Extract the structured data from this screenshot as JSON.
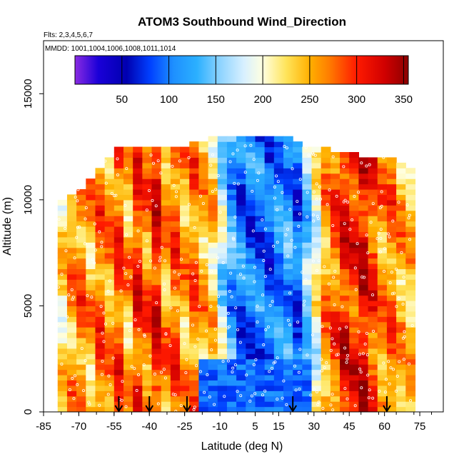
{
  "chart_data": {
    "type": "heatmap",
    "title": "ATOM3 Southbound Wind_Direction",
    "subtitle_flights": "Flts: 2,3,4,5,6,7",
    "subtitle_dates": "MMDD: 1001,1004,1006,1008,1011,1014",
    "xlabel": "Latitude (deg N)",
    "ylabel": "Altitude (m)",
    "xlim": [
      -85,
      85
    ],
    "ylim": [
      0,
      17500
    ],
    "x_tick_values": [
      -85,
      -70,
      -55,
      -40,
      -25,
      -10,
      5,
      15,
      30,
      45,
      60,
      75
    ],
    "x_tick_labels": [
      "-85",
      "-70",
      "-55",
      "-40",
      "-25",
      "-10",
      "5",
      "15",
      "30",
      "45",
      "60",
      "75"
    ],
    "y_tick_values": [
      0,
      5000,
      10000,
      15000
    ],
    "y_tick_labels": [
      "0",
      "5000",
      "10000",
      "15000"
    ],
    "colorbar": {
      "range": [
        0,
        355
      ],
      "tick_values": [
        50,
        100,
        150,
        200,
        250,
        300,
        350
      ],
      "tick_labels": [
        "50",
        "100",
        "150",
        "200",
        "250",
        "300",
        "350"
      ],
      "stops": [
        {
          "value": 0,
          "color": "#8a2be2"
        },
        {
          "value": 25,
          "color": "#1a00d8"
        },
        {
          "value": 55,
          "color": "#0000b0"
        },
        {
          "value": 80,
          "color": "#0040ff"
        },
        {
          "value": 105,
          "color": "#1e90ff"
        },
        {
          "value": 130,
          "color": "#2bb0ff"
        },
        {
          "value": 155,
          "color": "#8fd4ff"
        },
        {
          "value": 180,
          "color": "#d8f0ff"
        },
        {
          "value": 200,
          "color": "#ffffe0"
        },
        {
          "value": 225,
          "color": "#ffe45a"
        },
        {
          "value": 250,
          "color": "#ffb000"
        },
        {
          "value": 270,
          "color": "#ff7f00"
        },
        {
          "value": 300,
          "color": "#ff1a00"
        },
        {
          "value": 330,
          "color": "#d00000"
        },
        {
          "value": 355,
          "color": "#8b0000"
        }
      ]
    },
    "latitude_profiles": [
      {
        "lat": -77,
        "dir": 225
      },
      {
        "lat": -73,
        "dir": 255
      },
      {
        "lat": -69,
        "dir": 270
      },
      {
        "lat": -65,
        "dir": 250
      },
      {
        "lat": -61,
        "dir": 275
      },
      {
        "lat": -57,
        "dir": 260
      },
      {
        "lat": -53,
        "dir": 285
      },
      {
        "lat": -49,
        "dir": 250
      },
      {
        "lat": -45,
        "dir": 300
      },
      {
        "lat": -41,
        "dir": 270
      },
      {
        "lat": -37,
        "dir": 310
      },
      {
        "lat": -33,
        "dir": 260
      },
      {
        "lat": -29,
        "dir": 280
      },
      {
        "lat": -25,
        "dir": 250
      },
      {
        "lat": -21,
        "dir": 270
      },
      {
        "lat": -17,
        "dir": 245
      },
      {
        "lat": -13,
        "dir": 230
      },
      {
        "lat": -9,
        "dir": 170
      },
      {
        "lat": -5,
        "dir": 120
      },
      {
        "lat": -1,
        "dir": 100
      },
      {
        "lat": 3,
        "dir": 95
      },
      {
        "lat": 7,
        "dir": 100
      },
      {
        "lat": 11,
        "dir": 90
      },
      {
        "lat": 15,
        "dir": 110
      },
      {
        "lat": 19,
        "dir": 120
      },
      {
        "lat": 23,
        "dir": 95
      },
      {
        "lat": 27,
        "dir": 150
      },
      {
        "lat": 31,
        "dir": 200
      },
      {
        "lat": 35,
        "dir": 255
      },
      {
        "lat": 39,
        "dir": 280
      },
      {
        "lat": 43,
        "dir": 310
      },
      {
        "lat": 47,
        "dir": 300
      },
      {
        "lat": 51,
        "dir": 320
      },
      {
        "lat": 55,
        "dir": 290
      },
      {
        "lat": 59,
        "dir": 260
      },
      {
        "lat": 63,
        "dir": 270
      },
      {
        "lat": 67,
        "dir": 250
      },
      {
        "lat": 71,
        "dir": 240
      }
    ],
    "profile_tops_m": [
      {
        "lat": -77,
        "top": 10000
      },
      {
        "lat": -69,
        "top": 10500
      },
      {
        "lat": -61,
        "top": 11500
      },
      {
        "lat": -53,
        "top": 12500
      },
      {
        "lat": -45,
        "top": 12500
      },
      {
        "lat": -29,
        "top": 12300
      },
      {
        "lat": -13,
        "top": 12800
      },
      {
        "lat": 3,
        "top": 12900
      },
      {
        "lat": 19,
        "top": 12900
      },
      {
        "lat": 27,
        "top": 12500
      },
      {
        "lat": 35,
        "top": 12300
      },
      {
        "lat": 51,
        "top": 12000
      },
      {
        "lat": 63,
        "top": 12000
      },
      {
        "lat": 71,
        "top": 11500
      }
    ],
    "sounding_markers_lat": [
      -53,
      -40,
      -24,
      21,
      61
    ]
  }
}
